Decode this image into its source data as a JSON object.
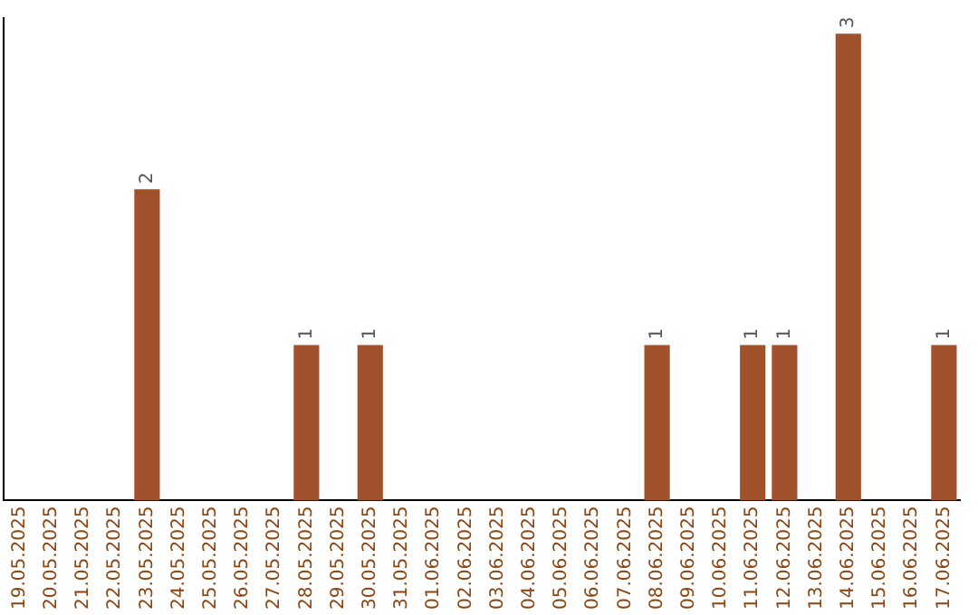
{
  "chart_data": {
    "type": "bar",
    "categories": [
      "19.05.2025",
      "20.05.2025",
      "21.05.2025",
      "22.05.2025",
      "23.05.2025",
      "24.05.2025",
      "25.05.2025",
      "26.05.2025",
      "27.05.2025",
      "28.05.2025",
      "29.05.2025",
      "30.05.2025",
      "31.05.2025",
      "01.06.2025",
      "02.06.2025",
      "03.06.2025",
      "04.06.2025",
      "05.06.2025",
      "06.06.2025",
      "07.06.2025",
      "08.06.2025",
      "09.06.2025",
      "10.06.2025",
      "11.06.2025",
      "12.06.2025",
      "13.06.2025",
      "14.06.2025",
      "15.06.2025",
      "16.06.2025",
      "17.06.2025"
    ],
    "values": [
      0,
      0,
      0,
      0,
      2,
      0,
      0,
      0,
      0,
      1,
      0,
      1,
      0,
      0,
      0,
      0,
      0,
      0,
      0,
      0,
      1,
      0,
      0,
      1,
      1,
      0,
      3,
      0,
      0,
      1
    ],
    "value_labels": [
      null,
      null,
      null,
      null,
      "2",
      null,
      null,
      null,
      null,
      "1",
      null,
      "1",
      null,
      null,
      null,
      null,
      null,
      null,
      null,
      null,
      "1",
      null,
      null,
      "1",
      "1",
      null,
      "3",
      null,
      null,
      "1"
    ],
    "color": "#a0522d",
    "ylim": [
      0,
      3.1
    ],
    "tick_labels": "x",
    "grid": false,
    "legend": false
  }
}
